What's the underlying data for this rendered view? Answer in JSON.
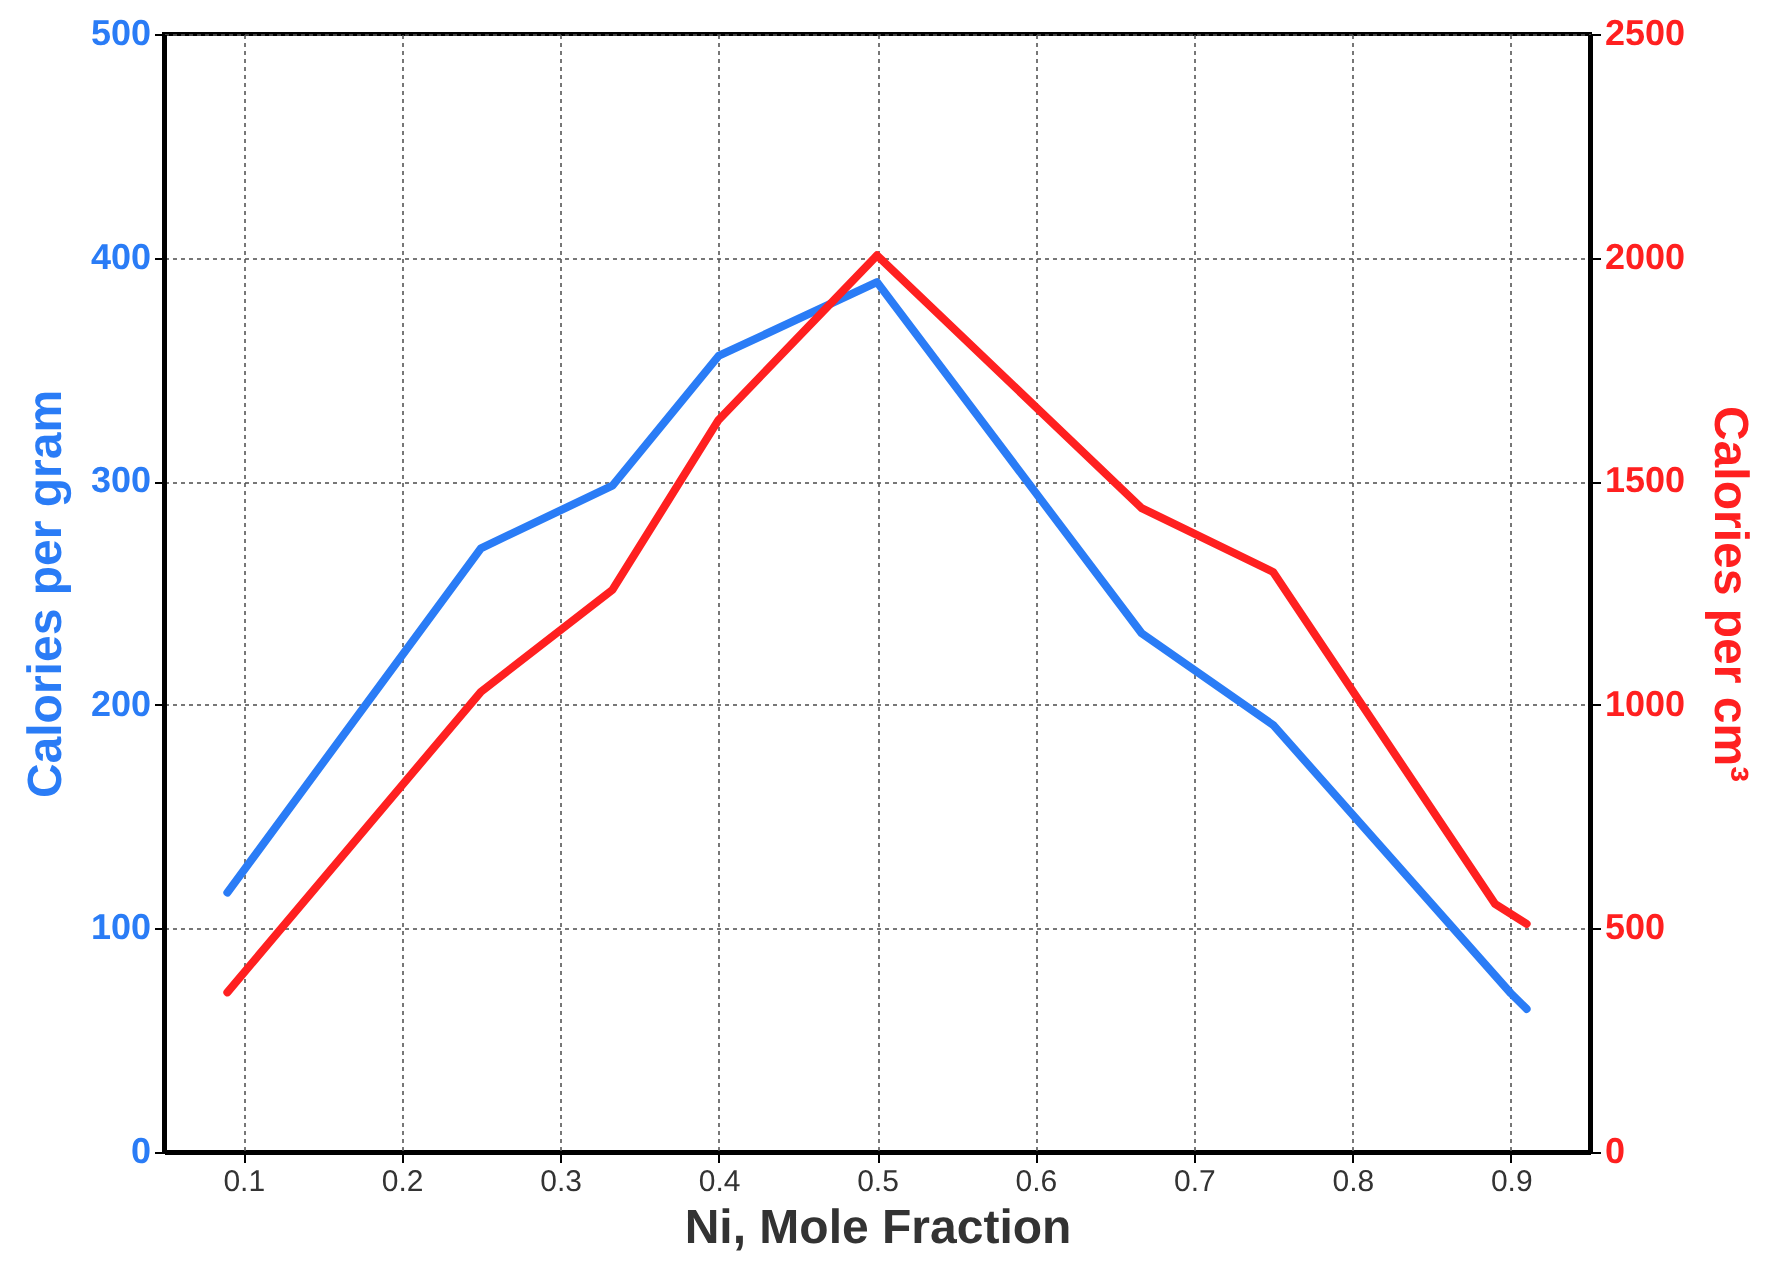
{
  "chart_data": {
    "type": "line",
    "xlabel": "Ni, Mole Fraction",
    "ylabel": "Calories per gram",
    "y2label": "Calories per cm³",
    "xlim": [
      0.05,
      0.95
    ],
    "xticks": [
      0.1,
      0.2,
      0.3,
      0.4,
      0.5,
      0.6,
      0.7,
      0.8,
      0.9
    ],
    "ylim": [
      0,
      500
    ],
    "yticks": [
      0,
      100,
      200,
      300,
      400,
      500
    ],
    "y2lim": [
      0,
      2500
    ],
    "y2ticks": [
      0,
      500,
      1000,
      1500,
      2000,
      2500
    ],
    "grid": true,
    "line_style": "solid",
    "marker": "none",
    "series": [
      {
        "color": "#2a7cf6",
        "x": [
          0.09,
          0.25,
          0.333,
          0.4,
          0.5,
          0.667,
          0.75,
          0.9,
          0.91
        ],
        "values": [
          116,
          270,
          298,
          356,
          389,
          232,
          191,
          71,
          64
        ]
      },
      {
        "color": "#ff2020",
        "axis": "y2",
        "x": [
          0.09,
          0.25,
          0.333,
          0.4,
          0.5,
          0.667,
          0.75,
          0.89,
          0.91
        ],
        "values": [
          357,
          1029,
          1257,
          1637,
          2005,
          1440,
          1297,
          555,
          510
        ]
      }
    ]
  }
}
